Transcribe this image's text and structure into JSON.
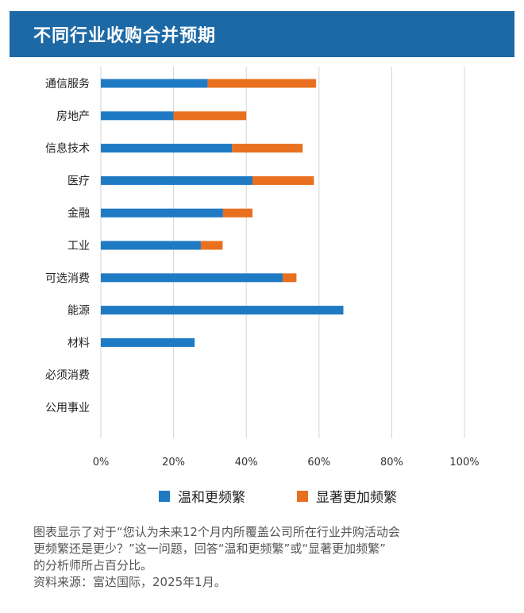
{
  "header": {
    "title": "不同行业收购合并预期"
  },
  "chart_data": {
    "type": "bar",
    "orientation": "horizontal",
    "stacked": true,
    "title": "不同行业收购合并预期",
    "categories": [
      "通信服务",
      "房地产",
      "信息技术",
      "医疗",
      "金融",
      "工业",
      "可选消费",
      "能源",
      "材料",
      "必须消费",
      "公用事业"
    ],
    "series": [
      {
        "name": "温和更频繁",
        "color": "#1f7ac4",
        "values": [
          29.4,
          20.0,
          36.1,
          41.7,
          33.6,
          27.5,
          50.0,
          66.7,
          25.8,
          0,
          0
        ]
      },
      {
        "name": "显著更加频繁",
        "color": "#e8701f",
        "values": [
          29.8,
          20.0,
          19.4,
          16.9,
          8.1,
          6.0,
          3.8,
          0,
          0,
          0,
          0
        ]
      }
    ],
    "xlim": [
      0,
      100
    ],
    "xticks": [
      "0%",
      "20%",
      "40%",
      "60%",
      "80%",
      "100%"
    ],
    "grid": true,
    "legend_position": "bottom"
  },
  "legend": {
    "items": [
      {
        "label": "温和更频繁",
        "color": "#1f7ac4"
      },
      {
        "label": "显著更加频繁",
        "color": "#e8701f"
      }
    ]
  },
  "footnote": {
    "line1": "图表显示了对于“您认为未来12个月内所覆盖公司所在行业并购活动会",
    "line2": "更频繁还是更少？”这一问题，回答“温和更频繁”或“显著更加频繁”",
    "line3": "的分析师所占百分比。",
    "source": "资料来源：富达国际，2025年1月。"
  }
}
